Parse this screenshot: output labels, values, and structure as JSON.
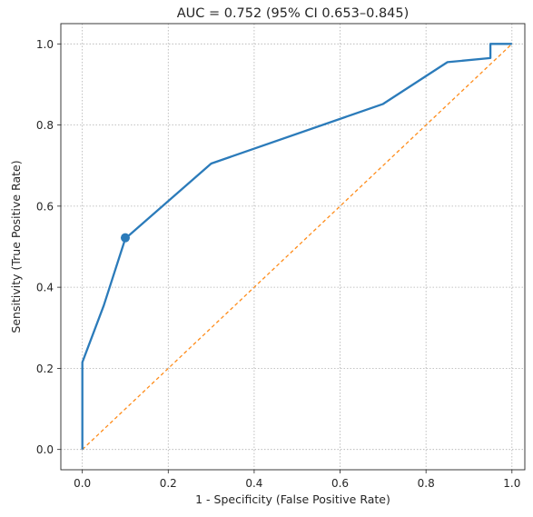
{
  "chart_data": {
    "type": "line",
    "title": "AUC = 0.752 (95% CI 0.653–0.845)",
    "xlabel": "1 - Specificity (False Positive Rate)",
    "ylabel": "Sensitivity (True Positive Rate)",
    "xlim": [
      -0.05,
      1.03
    ],
    "ylim": [
      -0.05,
      1.05
    ],
    "x_ticks": [
      0.0,
      0.2,
      0.4,
      0.6,
      0.8,
      1.0
    ],
    "x_tick_labels": [
      "0.0",
      "0.2",
      "0.4",
      "0.6",
      "0.8",
      "1.0"
    ],
    "y_ticks": [
      0.0,
      0.2,
      0.4,
      0.6,
      0.8,
      1.0
    ],
    "y_tick_labels": [
      "0.0",
      "0.2",
      "0.4",
      "0.6",
      "0.8",
      "1.0"
    ],
    "grid": true,
    "series": [
      {
        "style": "solid",
        "color": "#2b7bba",
        "x": [
          0.0,
          0.0,
          0.05,
          0.1,
          0.3,
          0.7,
          0.85,
          0.95,
          0.95,
          1.0
        ],
        "y": [
          0.0,
          0.215,
          0.355,
          0.52,
          0.705,
          0.852,
          0.955,
          0.965,
          1.0,
          1.0
        ]
      },
      {
        "style": "dashed",
        "color": "#ff8c1a",
        "x": [
          0.0,
          1.0
        ],
        "y": [
          0.0,
          1.0
        ]
      }
    ],
    "markers": [
      {
        "x": 0.1,
        "y": 0.522,
        "color": "#2b7bba"
      }
    ]
  }
}
